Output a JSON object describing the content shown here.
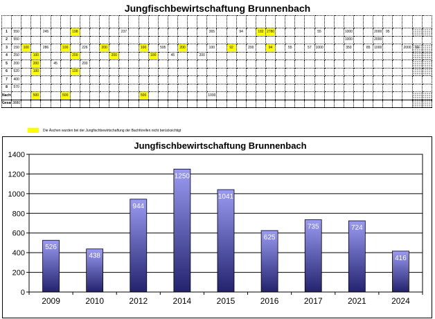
{
  "page": {
    "title": "Jungfischbewirtschaftung Brunnenbach"
  },
  "sheet": {
    "note": "Die Äschen wurden bei der Jungfischbewirtschaftung der Bachforellen nicht berücksichtigt",
    "rows": [
      [
        "1",
        "550",
        "",
        "",
        "245",
        "",
        "",
        "198",
        "",
        "",
        "",
        "",
        "237",
        "",
        "",
        "",
        "",
        "",
        "",
        "",
        "",
        "365",
        "",
        "",
        "94",
        "",
        "182",
        "2780",
        "",
        "",
        "",
        "",
        "55",
        "",
        "",
        "1000",
        "",
        "",
        "2000",
        "95",
        "",
        ""
      ],
      [
        "2",
        "550",
        "",
        "",
        "",
        "",
        "",
        "",
        "",
        "",
        "",
        "",
        "",
        "",
        "",
        "",
        "",
        "",
        "",
        "",
        "",
        "",
        "",
        "",
        "",
        "",
        "",
        "",
        "",
        "",
        "",
        "",
        "",
        "",
        "",
        "1000",
        "",
        "",
        "2000",
        "",
        "",
        ""
      ],
      [
        "3",
        "150",
        "100",
        "",
        "286",
        "",
        "100",
        "",
        "226",
        "",
        "200",
        "",
        "",
        "",
        "100",
        "",
        "595",
        "",
        "200",
        "",
        "",
        "100",
        "",
        "92",
        "",
        "200",
        "",
        "94",
        "",
        "55",
        "",
        "57",
        "1000",
        "",
        "",
        "350",
        "",
        "85",
        "1000",
        "",
        "",
        "2000",
        "59",
        ""
      ],
      [
        "4",
        "250",
        "",
        "100",
        "",
        "",
        "",
        "200",
        "",
        "",
        "",
        "200",
        "",
        "",
        "",
        "100",
        "",
        "45",
        "",
        "",
        "200",
        "",
        "",
        "",
        "",
        "",
        "",
        "",
        "",
        "",
        "",
        "",
        "",
        "",
        "",
        "",
        "",
        "",
        "",
        "",
        "",
        "",
        "",
        ""
      ],
      [
        "5",
        "200",
        "",
        "200",
        "",
        "45",
        "",
        "",
        "200",
        "",
        "",
        "",
        "",
        "",
        "",
        "",
        "",
        "",
        "",
        "",
        "",
        "",
        "",
        "",
        "",
        "",
        "",
        "",
        "",
        "",
        "",
        "",
        "",
        "",
        "",
        "",
        "",
        "",
        "",
        "",
        "",
        "",
        "",
        ""
      ],
      [
        "6",
        "520",
        "",
        "100",
        "",
        "",
        "",
        "100",
        "",
        "",
        "",
        "",
        "",
        "",
        "",
        "",
        "",
        "",
        "",
        "",
        "",
        "",
        "",
        "",
        "",
        "",
        "",
        "",
        "",
        "",
        "",
        "",
        "",
        "",
        "",
        "",
        "",
        "",
        "",
        "",
        "",
        "",
        "",
        ""
      ],
      [
        "7",
        "400",
        "",
        "",
        "",
        "",
        "",
        "",
        "",
        "",
        "",
        "",
        "",
        "",
        "",
        "",
        "",
        "",
        "",
        "",
        "",
        "",
        "",
        "",
        "",
        "",
        "",
        "",
        "",
        "",
        "",
        "",
        "",
        "",
        "",
        "",
        "",
        "",
        "",
        "",
        "",
        "",
        "",
        ""
      ],
      [
        "8",
        "570",
        "",
        "",
        "",
        "",
        "",
        "",
        "",
        "",
        "",
        "",
        "",
        "",
        "",
        "",
        "",
        "",
        "",
        "",
        "",
        "",
        "",
        "",
        "",
        "",
        "",
        "",
        "",
        "",
        "",
        "",
        "",
        "",
        "",
        "",
        "",
        "",
        "",
        "",
        "",
        "",
        "",
        ""
      ],
      [
        "Nachts",
        "",
        "",
        "500",
        "",
        "",
        "500",
        "",
        "",
        "",
        "",
        "",
        "",
        "",
        "500",
        "",
        "",
        "",
        "",
        "",
        "",
        "1000",
        "",
        "",
        "",
        "",
        "",
        "",
        "",
        "",
        "",
        "",
        "",
        "",
        "",
        "",
        "",
        "",
        "",
        "",
        "",
        "",
        "",
        ""
      ],
      [
        "Gesamt",
        "3880",
        "",
        "",
        "",
        "",
        "",
        "",
        "",
        "",
        "",
        "",
        "",
        "",
        "",
        "",
        "",
        "",
        "",
        "",
        "",
        "",
        "",
        "",
        "",
        "",
        "",
        "",
        "",
        "",
        "",
        "",
        "",
        "",
        "",
        "",
        "",
        "",
        "",
        "",
        "",
        "",
        "",
        ""
      ]
    ]
  },
  "chart_data": {
    "type": "bar",
    "title": "Jungfischbewirtschaftung Brunnenbach",
    "categories": [
      "2009",
      "2010",
      "2012",
      "2014",
      "2015",
      "2016",
      "2017",
      "2021",
      "2024"
    ],
    "values": [
      526,
      438,
      944,
      1250,
      1041,
      625,
      735,
      724,
      416
    ],
    "data_labels": [
      "526",
      "438",
      "944",
      "1250",
      "1041",
      "625",
      "735",
      "724",
      "416"
    ],
    "xlabel": "",
    "ylabel": "",
    "ylim": [
      0,
      1400
    ],
    "yticks": [
      "0",
      "200",
      "400",
      "600",
      "800",
      "1000",
      "1200",
      "1400"
    ],
    "grid": true,
    "legend": "none",
    "colors": {
      "bar_top": "#9a9af2",
      "bar_bottom": "#22226e",
      "plot_bg": "#ffffff",
      "grid": "#000000"
    }
  }
}
